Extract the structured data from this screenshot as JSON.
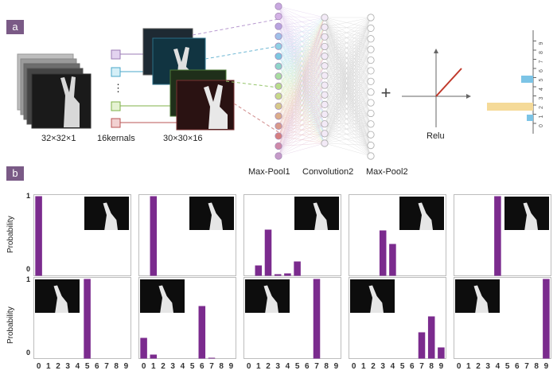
{
  "panel_a": {
    "label": "a",
    "input_size": "32×32×1",
    "kernels": "16kernals",
    "feature_size": "30×30×16",
    "layers": [
      "Max-Pool1",
      "Convolution2",
      "Max-Pool2"
    ],
    "plus": "+",
    "activation": "Relu",
    "output_ticks": [
      "0",
      "1",
      "2",
      "3",
      "4",
      "5",
      "6",
      "7",
      "8",
      "9"
    ],
    "kernel_ellipsis": "⋮",
    "colors": {
      "kernel1": "#c9a8e0",
      "kernel2": "#7dc7e0",
      "kernel3": "#b8dc8c",
      "kernel4": "#d67f7f",
      "relu": "#c0392b",
      "bar_blue": "#7cc4e6",
      "bar_yellow": "#f5da98"
    }
  },
  "panel_b": {
    "label": "b",
    "ylabel": "Probability",
    "yticks": [
      "1",
      "0"
    ],
    "bar_color": "#7b2b8e",
    "categories": [
      "0",
      "1",
      "2",
      "3",
      "4",
      "5",
      "6",
      "7",
      "8",
      "9"
    ]
  },
  "chart_data": [
    {
      "type": "bar",
      "gesture": "0",
      "categories": [
        "0",
        "1",
        "2",
        "3",
        "4",
        "5",
        "6",
        "7",
        "8",
        "9"
      ],
      "values": [
        1.0,
        0,
        0,
        0,
        0,
        0,
        0,
        0,
        0,
        0
      ],
      "ylim": [
        0,
        1
      ]
    },
    {
      "type": "bar",
      "gesture": "1",
      "categories": [
        "0",
        "1",
        "2",
        "3",
        "4",
        "5",
        "6",
        "7",
        "8",
        "9"
      ],
      "values": [
        0,
        1.0,
        0,
        0,
        0,
        0,
        0,
        0,
        0,
        0
      ],
      "ylim": [
        0,
        1
      ]
    },
    {
      "type": "bar",
      "gesture": "2",
      "categories": [
        "0",
        "1",
        "2",
        "3",
        "4",
        "5",
        "6",
        "7",
        "8",
        "9"
      ],
      "values": [
        0,
        0.13,
        0.58,
        0.02,
        0.03,
        0.18,
        0,
        0,
        0,
        0
      ],
      "ylim": [
        0,
        1
      ]
    },
    {
      "type": "bar",
      "gesture": "3",
      "categories": [
        "0",
        "1",
        "2",
        "3",
        "4",
        "5",
        "6",
        "7",
        "8",
        "9"
      ],
      "values": [
        0,
        0,
        0,
        0.57,
        0.4,
        0,
        0,
        0,
        0,
        0
      ],
      "ylim": [
        0,
        1
      ]
    },
    {
      "type": "bar",
      "gesture": "4",
      "categories": [
        "0",
        "1",
        "2",
        "3",
        "4",
        "5",
        "6",
        "7",
        "8",
        "9"
      ],
      "values": [
        0,
        0,
        0,
        0,
        1.0,
        0,
        0,
        0,
        0,
        0
      ],
      "ylim": [
        0,
        1
      ]
    },
    {
      "type": "bar",
      "gesture": "5",
      "categories": [
        "0",
        "1",
        "2",
        "3",
        "4",
        "5",
        "6",
        "7",
        "8",
        "9"
      ],
      "values": [
        0,
        0,
        0,
        0,
        0,
        1.0,
        0,
        0,
        0,
        0
      ],
      "ylim": [
        0,
        1
      ]
    },
    {
      "type": "bar",
      "gesture": "6",
      "categories": [
        "0",
        "1",
        "2",
        "3",
        "4",
        "5",
        "6",
        "7",
        "8",
        "9"
      ],
      "values": [
        0.26,
        0.05,
        0,
        0,
        0,
        0,
        0.66,
        0.01,
        0,
        0
      ],
      "ylim": [
        0,
        1
      ]
    },
    {
      "type": "bar",
      "gesture": "7",
      "categories": [
        "0",
        "1",
        "2",
        "3",
        "4",
        "5",
        "6",
        "7",
        "8",
        "9"
      ],
      "values": [
        0,
        0,
        0,
        0,
        0,
        0,
        0,
        1.0,
        0,
        0
      ],
      "ylim": [
        0,
        1
      ]
    },
    {
      "type": "bar",
      "gesture": "8",
      "categories": [
        "0",
        "1",
        "2",
        "3",
        "4",
        "5",
        "6",
        "7",
        "8",
        "9"
      ],
      "values": [
        0,
        0,
        0,
        0,
        0,
        0,
        0,
        0.33,
        0.53,
        0.14
      ],
      "ylim": [
        0,
        1
      ]
    },
    {
      "type": "bar",
      "gesture": "9",
      "categories": [
        "0",
        "1",
        "2",
        "3",
        "4",
        "5",
        "6",
        "7",
        "8",
        "9"
      ],
      "values": [
        0,
        0,
        0,
        0,
        0,
        0,
        0,
        0,
        0,
        1.0
      ],
      "ylim": [
        0,
        1
      ]
    }
  ]
}
